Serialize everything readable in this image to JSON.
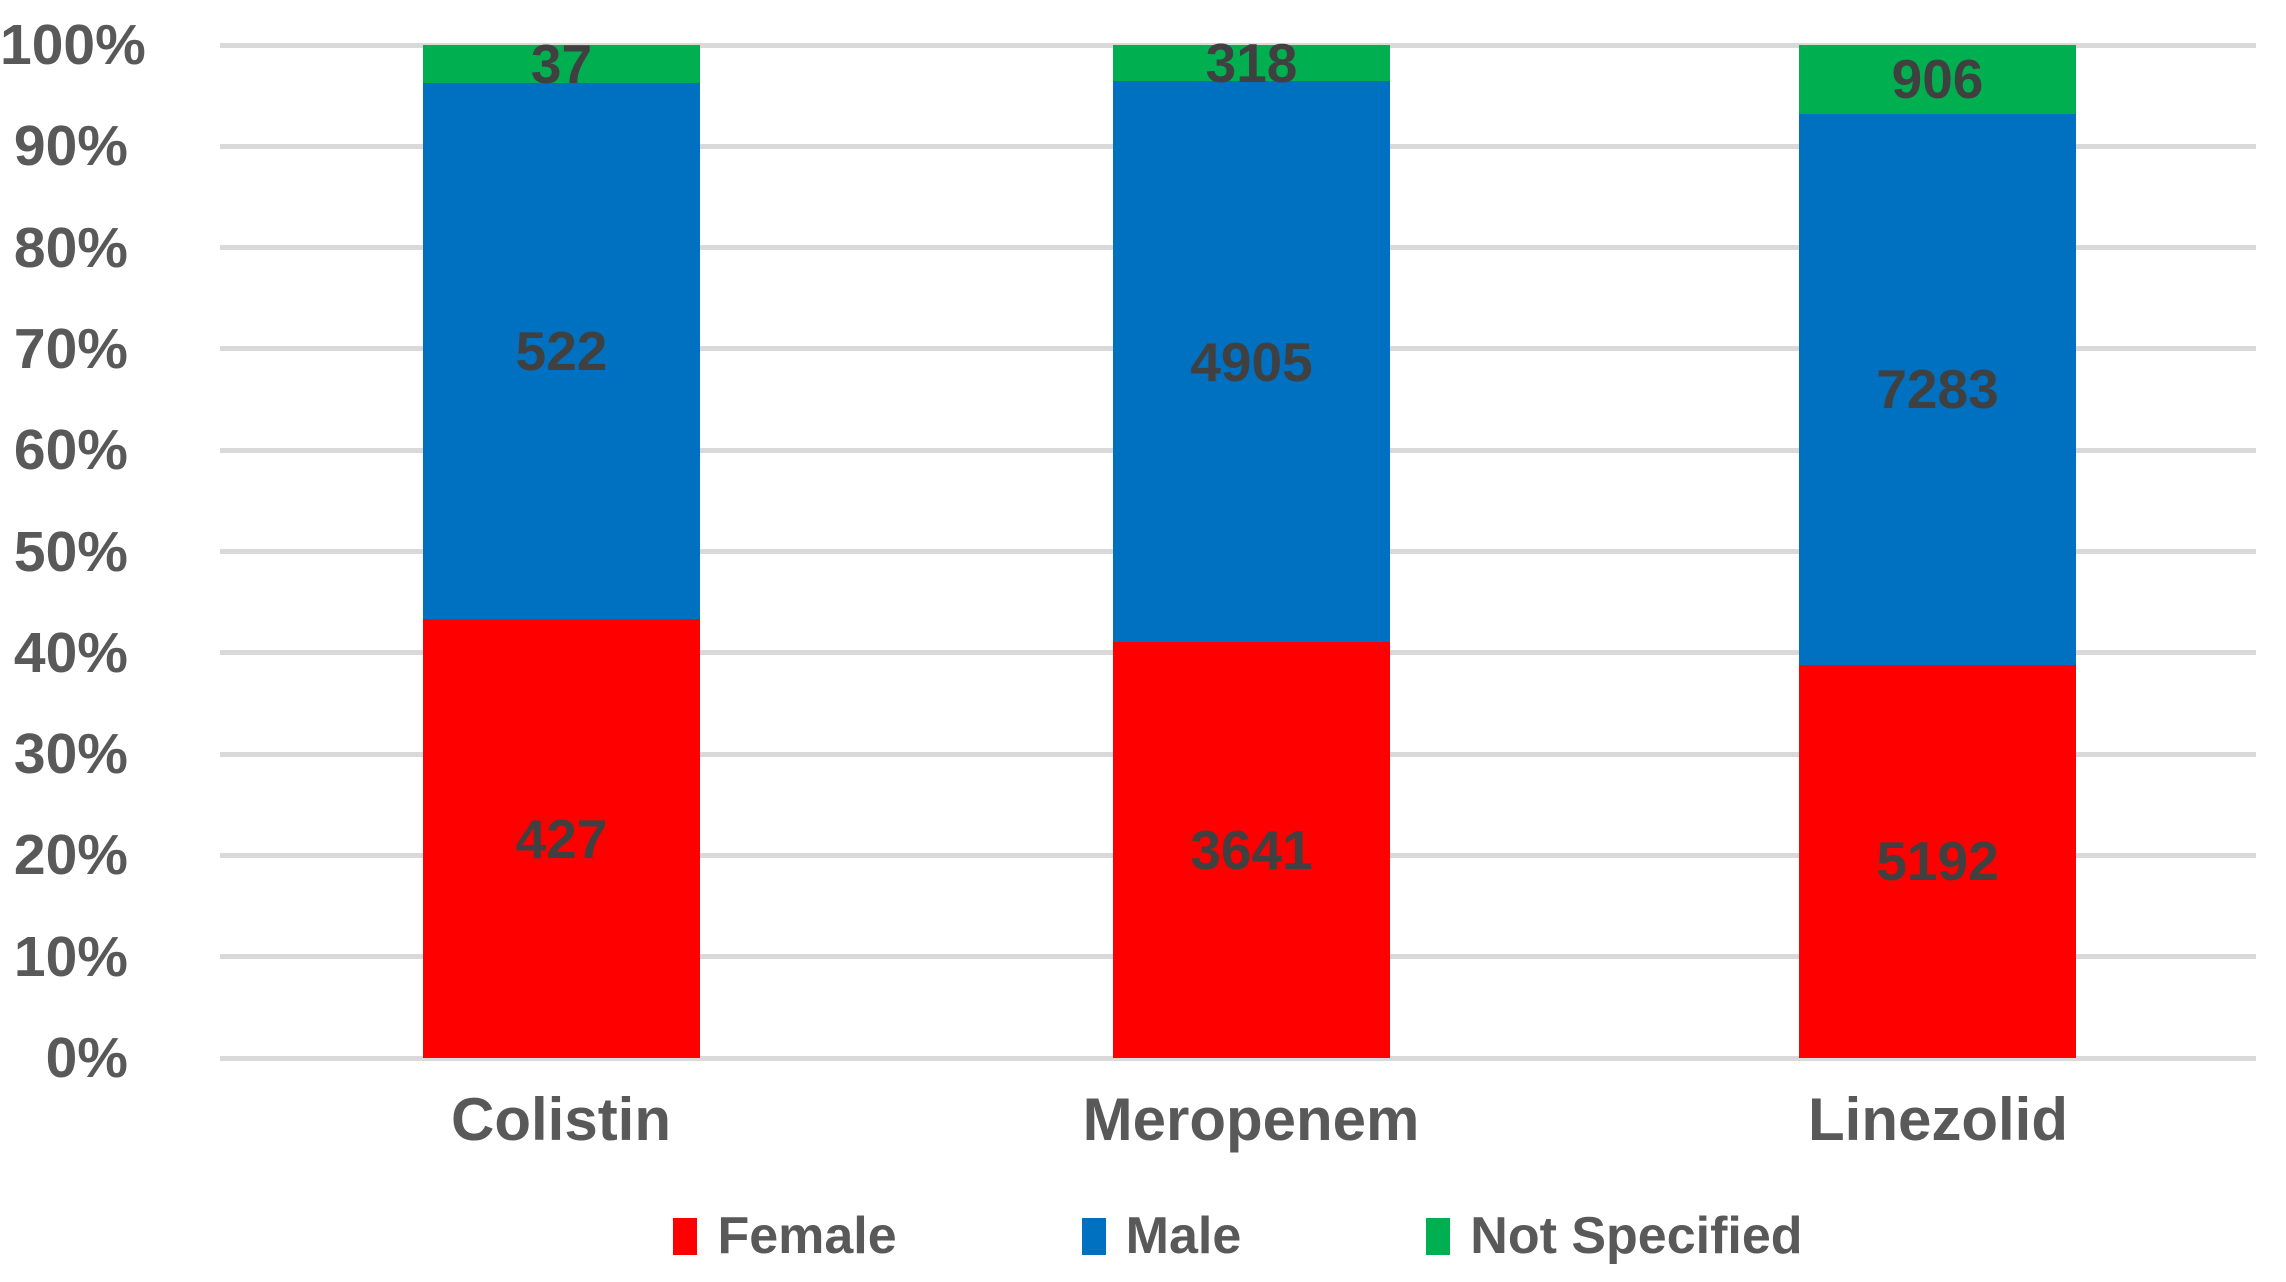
{
  "chart_data": {
    "type": "bar",
    "subtype": "stacked-100-percent-column",
    "title": "",
    "xlabel": "",
    "ylabel": "",
    "categories": [
      "Colistin",
      "Meropenem",
      "Linezolid"
    ],
    "series": [
      {
        "name": "Female",
        "color": "#FF0000",
        "values": [
          427,
          3641,
          5192
        ]
      },
      {
        "name": "Male",
        "color": "#0070C0",
        "values": [
          522,
          4905,
          7283
        ]
      },
      {
        "name": "Not Specified",
        "color": "#00B050",
        "values": [
          37,
          318,
          906
        ]
      }
    ],
    "stack_order_bottom_to_top": [
      "Female",
      "Male",
      "Not Specified"
    ],
    "y_axis": {
      "min": 0,
      "max": 100,
      "tick_labels": [
        "0%",
        "10%",
        "20%",
        "30%",
        "40%",
        "50%",
        "60%",
        "70%",
        "80%",
        "90%",
        "100%"
      ],
      "grid": true
    },
    "legend": {
      "position": "bottom",
      "entries": [
        "Female",
        "Male",
        "Not Specified"
      ]
    }
  },
  "colors": {
    "background": "#FFFFFF",
    "gridline": "#D9D9D9",
    "axis_text": "#595959",
    "data_label_text": "#404040"
  }
}
